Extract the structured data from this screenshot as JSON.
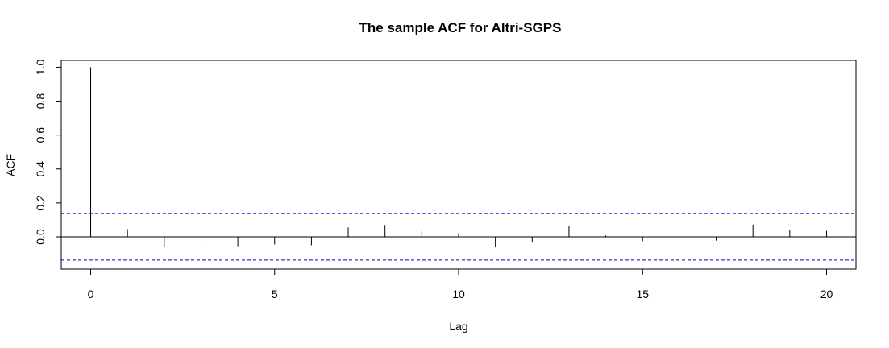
{
  "chart_data": {
    "type": "bar",
    "title": "The sample ACF for Altri-SGPS",
    "xlabel": "Lag",
    "ylabel": "ACF",
    "xlim": [
      -0.8,
      20.8
    ],
    "ylim": [
      -0.19,
      1.04
    ],
    "x_ticks": [
      0,
      5,
      10,
      15,
      20
    ],
    "x_tick_labels": [
      "0",
      "5",
      "10",
      "15",
      "20"
    ],
    "y_ticks": [
      0.0,
      0.2,
      0.4,
      0.6,
      0.8,
      1.0
    ],
    "y_tick_labels": [
      "0.0",
      "0.2",
      "0.4",
      "0.6",
      "0.8",
      "1.0"
    ],
    "lags": [
      0,
      1,
      2,
      3,
      4,
      5,
      6,
      7,
      8,
      9,
      10,
      11,
      12,
      13,
      14,
      15,
      16,
      17,
      18,
      19,
      20
    ],
    "values": [
      1.0,
      0.045,
      -0.058,
      -0.04,
      -0.055,
      -0.045,
      -0.05,
      0.055,
      0.07,
      0.035,
      0.02,
      -0.062,
      -0.032,
      0.062,
      0.008,
      -0.025,
      0.0,
      -0.022,
      0.072,
      0.038,
      0.035
    ],
    "confidence_bounds": [
      0.137,
      -0.137
    ],
    "confidence_color": "#0000cd",
    "grid": false,
    "legend": "none"
  }
}
